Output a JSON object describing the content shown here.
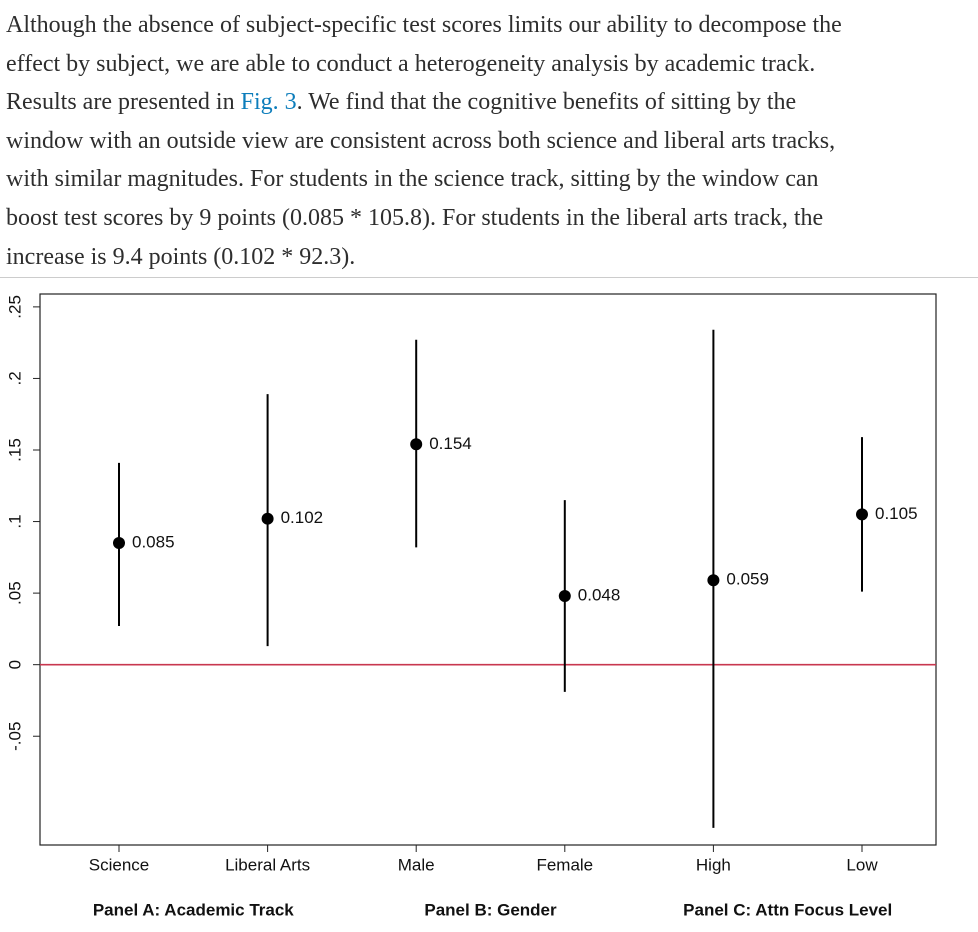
{
  "paragraph": {
    "lines_before": [
      "Although the absence of subject-specific test scores limits our ability to decompose the",
      "effect by subject, we are able to conduct a heterogeneity analysis by academic track."
    ],
    "link_line": {
      "before": "Results are presented in ",
      "link": "Fig. 3",
      "after": ". We find that the cognitive benefits of sitting by the"
    },
    "lines_after": [
      "window with an outside view are consistent across both science and liberal arts tracks,",
      "with similar magnitudes. For students in the science track, sitting by the window can",
      "boost test scores by 9 points (0.085 * 105.8). For students in the liberal arts track, the",
      "increase is 9.4 points (0.102 * 92.3)."
    ]
  },
  "chart_data": {
    "type": "errorbar",
    "categories": [
      "Science",
      "Liberal Arts",
      "Male",
      "Female",
      "High",
      "Low"
    ],
    "values": [
      0.085,
      0.102,
      0.154,
      0.048,
      0.059,
      0.105
    ],
    "ci_low": [
      0.027,
      0.013,
      0.082,
      -0.019,
      -0.114,
      0.051
    ],
    "ci_high": [
      0.141,
      0.189,
      0.227,
      0.115,
      0.234,
      0.159
    ],
    "panels": [
      "Panel A: Academic Track",
      "Panel B: Gender",
      "Panel C: Attn Focus Level"
    ],
    "ylim": [
      -0.126,
      0.259
    ],
    "yticks": [
      {
        "value": -0.05,
        "label": "-.05"
      },
      0,
      {
        "value": 0.05,
        "label": ".05"
      },
      {
        "value": 0.1,
        "label": ".1"
      },
      {
        "value": 0.15,
        "label": ".15"
      },
      {
        "value": 0.2,
        "label": ".2"
      },
      {
        "value": 0.25,
        "label": ".25"
      }
    ],
    "color": "#000000",
    "reference_line": {
      "value": 0,
      "color": "#c8374f"
    }
  }
}
